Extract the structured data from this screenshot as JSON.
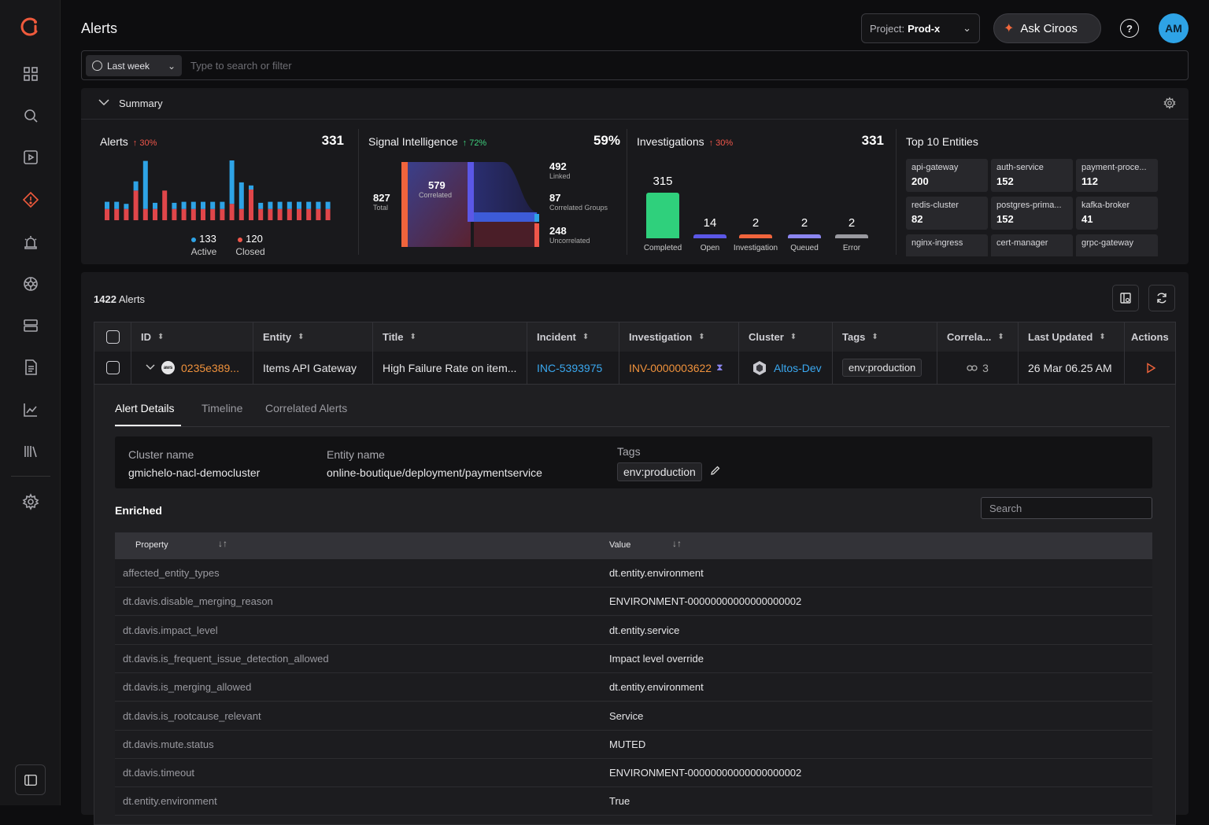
{
  "app": {
    "page_title": "Alerts"
  },
  "header": {
    "project_label": "Project:",
    "project_value": "Prod-x",
    "ask_label": "Ask Ciroos",
    "help_label": "?",
    "avatar_initials": "AM"
  },
  "filter": {
    "date_range": "Last week",
    "search_placeholder": "Type to search or filter"
  },
  "summary": {
    "label": "Summary",
    "alerts": {
      "title": "Alerts",
      "delta": "↑ 30%",
      "total": "331",
      "active_count": "133",
      "active_label": "Active",
      "closed_count": "120",
      "closed_label": "Closed",
      "bars": [
        {
          "blue": 0.35,
          "red": 0.55
        },
        {
          "blue": 0.35,
          "red": 0.55
        },
        {
          "blue": 0.25,
          "red": 0.55
        },
        {
          "blue": 0.45,
          "red": 1.45
        },
        {
          "blue": 2.35,
          "red": 0.55
        },
        {
          "blue": 0.3,
          "red": 0.55
        },
        {
          "blue": 0.0,
          "red": 1.45
        },
        {
          "blue": 0.3,
          "red": 0.55
        },
        {
          "blue": 0.35,
          "red": 0.55
        },
        {
          "blue": 0.35,
          "red": 0.55
        },
        {
          "blue": 0.35,
          "red": 0.55
        },
        {
          "blue": 0.35,
          "red": 0.55
        },
        {
          "blue": 0.35,
          "red": 0.55
        },
        {
          "blue": 2.55,
          "red": 0.8
        },
        {
          "blue": 1.3,
          "red": 0.55
        },
        {
          "blue": 0.2,
          "red": 1.5
        },
        {
          "blue": 0.3,
          "red": 0.55
        },
        {
          "blue": 0.35,
          "red": 0.55
        },
        {
          "blue": 0.35,
          "red": 0.55
        },
        {
          "blue": 0.35,
          "red": 0.55
        },
        {
          "blue": 0.35,
          "red": 0.55
        },
        {
          "blue": 0.35,
          "red": 0.55
        },
        {
          "blue": 0.35,
          "red": 0.55
        },
        {
          "blue": 0.35,
          "red": 0.55
        }
      ]
    },
    "signal": {
      "title": "Signal Intelligence",
      "delta": "↑ 72%",
      "pct": "59%",
      "total_value": "827",
      "total_label": "Total",
      "correlated_value": "579",
      "correlated_label": "Correlated",
      "linked_value": "492",
      "linked_label": "Linked",
      "groups_value": "87",
      "groups_label": "Correlated Groups",
      "uncorrelated_value": "248",
      "uncorrelated_label": "Uncorrelated"
    },
    "investigations": {
      "title": "Investigations",
      "delta": "↑ 30%",
      "total": "331",
      "bars": [
        {
          "label": "Completed",
          "value": 315,
          "display": "315",
          "color": "#2fd07c"
        },
        {
          "label": "Open",
          "value": 14,
          "display": "14",
          "color": "#5b57e6"
        },
        {
          "label": "Investigation",
          "value": 2,
          "display": "2",
          "color": "#f0643c"
        },
        {
          "label": "Queued",
          "value": 2,
          "display": "2",
          "color": "#8c86f0"
        },
        {
          "label": "Error",
          "value": 2,
          "display": "2",
          "color": "#9a9aa0"
        }
      ]
    },
    "entities": {
      "title": "Top 10 Entities",
      "items": [
        {
          "name": "api-gateway",
          "value": "200"
        },
        {
          "name": "auth-service",
          "value": "152"
        },
        {
          "name": "payment-proce...",
          "value": "112"
        },
        {
          "name": "redis-cluster",
          "value": "82"
        },
        {
          "name": "postgres-prima...",
          "value": "152"
        },
        {
          "name": "kafka-broker",
          "value": "41"
        },
        {
          "name": "nginx-ingress",
          "value": ""
        },
        {
          "name": "cert-manager",
          "value": ""
        },
        {
          "name": "grpc-gateway",
          "value": ""
        }
      ]
    }
  },
  "alerts_table": {
    "count": "1422",
    "count_label": "Alerts",
    "columns": [
      "ID",
      "Entity",
      "Title",
      "Incident",
      "Investigation",
      "Cluster",
      "Tags",
      "Correla...",
      "Last Updated",
      "Actions"
    ],
    "row": {
      "id": "0235e389...",
      "cloud": "aws",
      "entity": "Items API Gateway",
      "title": "High Failure Rate on item...",
      "incident": "INC-5393975",
      "investigation": "INV-0000003622",
      "cluster": "Altos-Dev",
      "tag": "env:production",
      "correlated": "3",
      "last_updated": "26 Mar 06.25 AM"
    }
  },
  "details": {
    "tabs": [
      "Alert Details",
      "Timeline",
      "Correlated Alerts"
    ],
    "cluster_name_label": "Cluster name",
    "cluster_name": "gmichelo-nacl-democluster",
    "entity_name_label": "Entity name",
    "entity_name": "online-boutique/deployment/paymentservice",
    "tags_label": "Tags",
    "tag": "env:production",
    "enriched_label": "Enriched",
    "search_placeholder": "Search",
    "property_header": "Property",
    "value_header": "Value",
    "properties": [
      {
        "k": "affected_entity_types",
        "v": "dt.entity.environment"
      },
      {
        "k": "dt.davis.disable_merging_reason",
        "v": "ENVIRONMENT-00000000000000000002"
      },
      {
        "k": "dt.davis.impact_level",
        "v": "dt.entity.service"
      },
      {
        "k": "dt.davis.is_frequent_issue_detection_allowed",
        "v": "Impact level override"
      },
      {
        "k": "dt.davis.is_merging_allowed",
        "v": "dt.entity.environment"
      },
      {
        "k": "dt.davis.is_rootcause_relevant",
        "v": "Service"
      },
      {
        "k": "dt.davis.mute.status",
        "v": "MUTED"
      },
      {
        "k": "dt.davis.timeout",
        "v": " ENVIRONMENT-00000000000000000002"
      },
      {
        "k": "dt.entity.environment",
        "v": "True"
      }
    ]
  }
}
